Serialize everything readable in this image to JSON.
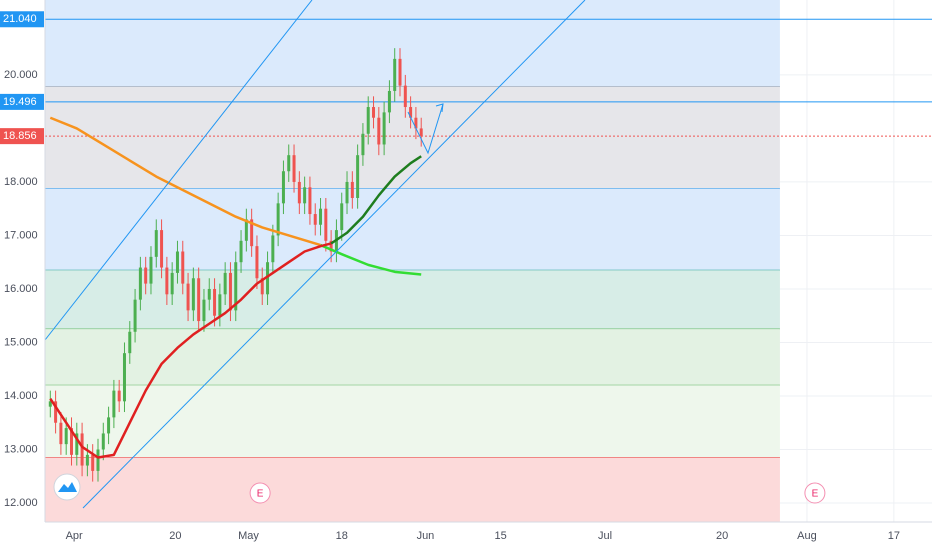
{
  "chart_data": {
    "type": "candlestick",
    "xlim": [
      -1,
      166.4
    ],
    "ylim": [
      11.645,
      21.4
    ],
    "xticks": [
      {
        "value": 4.5,
        "label": "Apr"
      },
      {
        "value": 23.6,
        "label": "20"
      },
      {
        "value": 37.4,
        "label": "May"
      },
      {
        "value": 55,
        "label": "18"
      },
      {
        "value": 70.8,
        "label": "Jun"
      },
      {
        "value": 85,
        "label": "15"
      },
      {
        "value": 104.7,
        "label": "Jul"
      },
      {
        "value": 126.8,
        "label": "20"
      },
      {
        "value": 142.8,
        "label": "Aug"
      },
      {
        "value": 159.2,
        "label": "17"
      }
    ],
    "yticks": [
      {
        "value": 12,
        "label": "12.000"
      },
      {
        "value": 13,
        "label": "13.000"
      },
      {
        "value": 14,
        "label": "14.000"
      },
      {
        "value": 15,
        "label": "15.000"
      },
      {
        "value": 16,
        "label": "16.000"
      },
      {
        "value": 17,
        "label": "17.000"
      },
      {
        "value": 18,
        "label": "18.000"
      },
      {
        "value": 20,
        "label": "20.000"
      }
    ],
    "grid": true,
    "up_color": "#4caf50",
    "down_color": "#ef5350",
    "candles": {
      "x": [
        0,
        1,
        2,
        3,
        4,
        5,
        6,
        7,
        8,
        9,
        10,
        11,
        12,
        13,
        14,
        15,
        16,
        17,
        18,
        19,
        20,
        21,
        22,
        23,
        24,
        25,
        26,
        27,
        28,
        29,
        30,
        31,
        32,
        33,
        34,
        35,
        36,
        37,
        38,
        39,
        40,
        41,
        42,
        43,
        44,
        45,
        46,
        47,
        48,
        49,
        50,
        51,
        52,
        53,
        54,
        55,
        56,
        57,
        58,
        59,
        60,
        61,
        62,
        63,
        64,
        65,
        66,
        67,
        68,
        69,
        70
      ],
      "open": [
        13.8,
        13.9,
        13.5,
        13.1,
        13.4,
        12.9,
        13.3,
        12.7,
        12.9,
        12.6,
        13.0,
        13.3,
        13.6,
        14.1,
        13.9,
        14.8,
        15.2,
        15.8,
        16.4,
        16.1,
        16.6,
        17.1,
        16.4,
        15.9,
        16.3,
        16.7,
        16.1,
        15.6,
        16.2,
        15.4,
        15.8,
        16.0,
        15.5,
        15.9,
        16.3,
        15.6,
        16.5,
        16.9,
        17.3,
        16.8,
        16.2,
        15.9,
        16.5,
        17.0,
        17.6,
        18.2,
        18.5,
        18.0,
        17.6,
        17.9,
        17.4,
        17.2,
        17.5,
        16.9,
        16.7,
        17.1,
        17.6,
        18.0,
        17.7,
        18.5,
        18.9,
        19.4,
        19.2,
        18.7,
        19.3,
        19.7,
        20.3,
        19.8,
        19.4,
        19.2,
        19.0
      ],
      "high": [
        14.1,
        14.1,
        13.7,
        13.6,
        13.6,
        13.5,
        13.5,
        13.1,
        13.1,
        13.2,
        13.5,
        13.8,
        14.3,
        14.3,
        15.0,
        15.4,
        16.0,
        16.6,
        16.6,
        16.8,
        17.3,
        17.3,
        16.6,
        16.5,
        16.9,
        16.9,
        16.3,
        16.4,
        16.4,
        16.0,
        16.2,
        16.2,
        16.1,
        16.5,
        16.5,
        16.7,
        17.1,
        17.5,
        17.5,
        17.0,
        16.4,
        16.7,
        17.2,
        17.8,
        18.4,
        18.7,
        18.7,
        18.2,
        18.1,
        18.1,
        17.6,
        17.7,
        17.7,
        17.1,
        17.3,
        17.8,
        18.2,
        18.2,
        18.7,
        19.1,
        19.6,
        19.6,
        19.4,
        19.5,
        19.9,
        20.5,
        20.5,
        20.0,
        19.6,
        19.4,
        19.2
      ],
      "low": [
        13.6,
        13.3,
        12.9,
        12.9,
        12.7,
        12.7,
        12.5,
        12.5,
        12.4,
        12.4,
        12.8,
        13.1,
        13.4,
        13.7,
        13.7,
        14.6,
        15.0,
        15.6,
        15.9,
        15.9,
        16.4,
        16.2,
        15.7,
        15.7,
        16.1,
        15.9,
        15.4,
        15.4,
        15.2,
        15.2,
        15.6,
        15.3,
        15.3,
        15.7,
        15.4,
        15.4,
        16.3,
        16.7,
        16.6,
        16.0,
        15.7,
        15.7,
        16.3,
        16.8,
        17.4,
        18.0,
        17.8,
        17.4,
        17.4,
        17.2,
        17.0,
        17.0,
        16.7,
        16.5,
        16.5,
        16.9,
        17.4,
        17.5,
        17.5,
        18.3,
        18.7,
        19.0,
        18.5,
        18.5,
        19.1,
        19.5,
        19.6,
        19.2,
        19.0,
        18.8,
        18.66
      ],
      "close": [
        13.9,
        13.5,
        13.1,
        13.4,
        12.9,
        13.3,
        12.7,
        12.9,
        12.6,
        13.0,
        13.3,
        13.6,
        14.1,
        13.9,
        14.8,
        15.2,
        15.8,
        16.4,
        16.1,
        16.6,
        17.1,
        16.4,
        15.9,
        16.3,
        16.7,
        16.1,
        15.6,
        16.2,
        15.4,
        15.8,
        16.0,
        15.5,
        15.9,
        16.3,
        15.6,
        16.5,
        16.9,
        17.3,
        16.8,
        16.2,
        15.9,
        16.5,
        17.0,
        17.6,
        18.2,
        18.5,
        18.0,
        17.6,
        17.9,
        17.4,
        17.2,
        17.5,
        16.9,
        16.7,
        17.1,
        17.6,
        18.0,
        17.7,
        18.5,
        18.9,
        19.4,
        19.2,
        18.7,
        19.3,
        19.7,
        20.3,
        19.8,
        19.4,
        19.2,
        19.0,
        18.86
      ]
    },
    "lines": [
      {
        "color": "#f7931e",
        "x": [
          0,
          5,
          10,
          15,
          20,
          25,
          30,
          35,
          40,
          45,
          51
        ],
        "values": [
          19.2,
          19.0,
          18.7,
          18.4,
          18.1,
          17.85,
          17.6,
          17.35,
          17.15,
          17.0,
          16.82
        ]
      },
      {
        "color": "#33dd33",
        "x": [
          51,
          55,
          60,
          65,
          70
        ],
        "values": [
          16.82,
          16.65,
          16.45,
          16.32,
          16.27
        ]
      },
      {
        "color": "#e02020",
        "x": [
          0,
          3,
          6,
          9,
          12,
          15,
          18,
          21,
          24,
          27,
          30,
          33,
          36,
          39,
          42,
          45,
          48,
          51,
          53
        ],
        "values": [
          13.95,
          13.5,
          13.05,
          12.85,
          12.9,
          13.5,
          14.1,
          14.6,
          14.9,
          15.15,
          15.35,
          15.55,
          15.8,
          16.1,
          16.3,
          16.5,
          16.7,
          16.8,
          16.85
        ]
      },
      {
        "color": "#1e7d1e",
        "x": [
          53,
          56,
          59,
          62,
          65,
          68,
          70
        ],
        "values": [
          16.85,
          17.05,
          17.35,
          17.75,
          18.1,
          18.35,
          18.48
        ]
      }
    ],
    "levels": [
      {
        "value": 21.04,
        "label": "21.040",
        "color": "#2196f3"
      },
      {
        "value": 19.496,
        "label": "19.496",
        "color": "#2196f3"
      },
      {
        "value": 18.856,
        "label": "18.856",
        "color": "#ef5350",
        "dashed": true
      }
    ],
    "zones": [
      {
        "from": 21.4,
        "to": 19.78,
        "color": "#dbeafc",
        "line": "#7a8899"
      },
      {
        "from": 19.78,
        "to": 17.87,
        "color": "#e6e6ea",
        "line": "#2196f3"
      },
      {
        "from": 17.87,
        "to": 16.35,
        "color": "#dbeafc",
        "line": "#26a69a"
      },
      {
        "from": 16.35,
        "to": 15.25,
        "color": "#d7ede7",
        "line": "#4caf50"
      },
      {
        "from": 15.25,
        "to": 14.2,
        "color": "#e3f2e3",
        "line": "#66bb6a"
      },
      {
        "from": 14.2,
        "to": 12.85,
        "color": "#eef7ec",
        "line": "#e53935"
      },
      {
        "from": 12.85,
        "to": 11.645,
        "color": "#fcdada"
      }
    ],
    "zone_end": 137.7,
    "events": [
      {
        "x": 39.6,
        "label": "E"
      },
      {
        "x": 144.3,
        "label": "E"
      }
    ]
  }
}
